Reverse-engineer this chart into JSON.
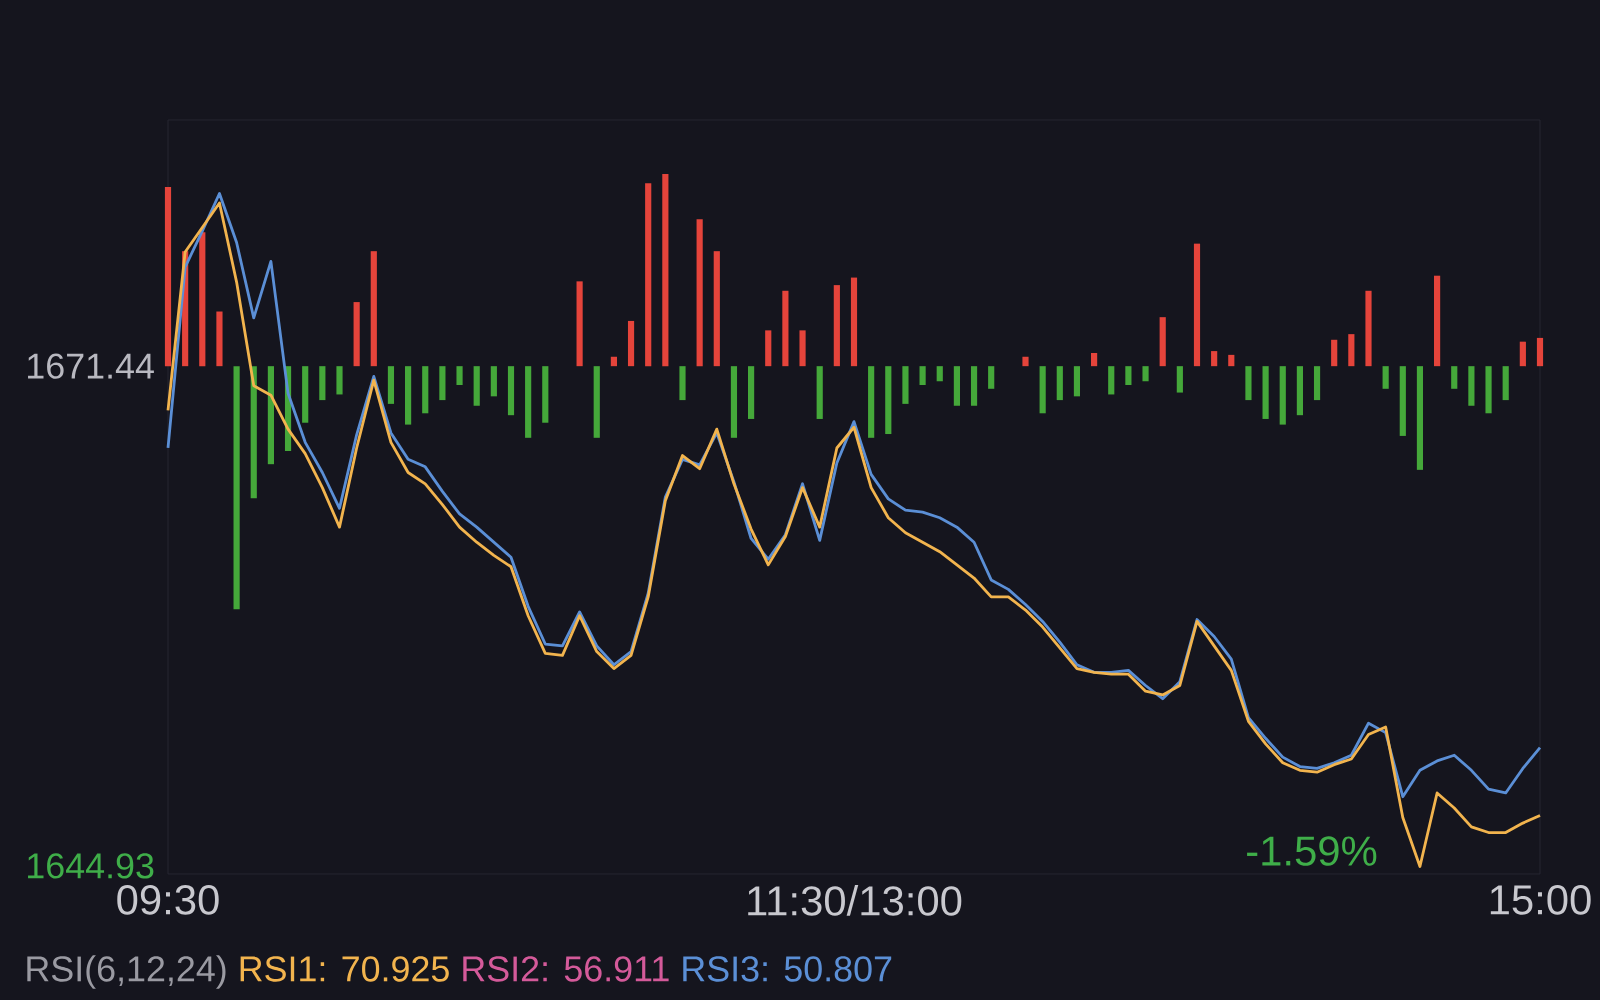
{
  "chart_data": {
    "type": "line",
    "categories": [
      "09:30",
      null,
      null,
      null,
      null,
      null,
      null,
      null,
      null,
      null,
      null,
      null,
      null,
      null,
      null,
      null,
      null,
      null,
      null,
      null,
      null,
      null,
      null,
      null,
      null,
      null,
      null,
      null,
      null,
      null,
      null,
      null,
      null,
      null,
      null,
      null,
      null,
      null,
      null,
      null,
      "11:30/13:00",
      null,
      null,
      null,
      null,
      null,
      null,
      null,
      null,
      null,
      null,
      null,
      null,
      null,
      null,
      null,
      null,
      null,
      null,
      null,
      null,
      null,
      null,
      null,
      null,
      null,
      null,
      null,
      null,
      null,
      null,
      null,
      null,
      null,
      null,
      null,
      null,
      null,
      null,
      null,
      "15:00"
    ],
    "ylim": [
      1644.5,
      1684.5
    ],
    "yticks": [
      1644.93,
      1671.44
    ],
    "marker": "none",
    "annotations": [
      "-1.59%",
      "RSI(6,12,24)",
      "RSI1: 70.925",
      "RSI2: 56.911",
      "RSI3: 50.807"
    ],
    "series": [
      {
        "type": "bar",
        "values": [
          9.5,
          6.1,
          7.1,
          2.9,
          -12.9,
          -7.0,
          -5.2,
          -4.5,
          -3.0,
          -1.8,
          -1.5,
          3.4,
          6.1,
          -2.0,
          -3.1,
          -2.5,
          -1.8,
          -1.0,
          -2.1,
          -1.6,
          -2.6,
          -3.8,
          -3.0,
          null,
          4.5,
          -3.8,
          0.5,
          2.4,
          9.7,
          10.2,
          -1.8,
          7.8,
          6.1,
          -3.8,
          -2.8,
          1.9,
          4.0,
          1.9,
          -2.8,
          4.3,
          4.7,
          -3.8,
          -3.6,
          -2.0,
          -1.0,
          -0.8,
          -2.1,
          -2.1,
          -1.2,
          null,
          0.5,
          -2.5,
          -1.8,
          -1.6,
          0.7,
          -1.5,
          -1.0,
          -0.8,
          2.6,
          -1.4,
          6.5,
          0.8,
          0.6,
          -1.8,
          -2.8,
          -3.1,
          -2.6,
          -1.8,
          1.4,
          1.7,
          4.0,
          -1.2,
          -3.7,
          -5.5,
          4.8,
          -1.2,
          -2.1,
          -2.5,
          -1.8,
          1.3,
          1.5
        ],
        "colors": [
          "#e5443b",
          "#e5443b",
          "#e5443b",
          "#e5443b",
          "#45a83a",
          "#45a83a",
          "#45a83a",
          "#45a83a",
          "#45a83a",
          "#45a83a",
          "#45a83a",
          "#e5443b",
          "#e5443b",
          "#45a83a",
          "#45a83a",
          "#45a83a",
          "#45a83a",
          "#45a83a",
          "#45a83a",
          "#45a83a",
          "#45a83a",
          "#45a83a",
          "#45a83a",
          "#45a83a",
          "#e5443b",
          "#45a83a",
          "#e5443b",
          "#e5443b",
          "#e5443b",
          "#e5443b",
          "#45a83a",
          "#e5443b",
          "#e5443b",
          "#45a83a",
          "#45a83a",
          "#e5443b",
          "#e5443b",
          "#e5443b",
          "#45a83a",
          "#e5443b",
          "#e5443b",
          "#45a83a",
          "#45a83a",
          "#45a83a",
          "#45a83a",
          "#45a83a",
          "#45a83a",
          "#45a83a",
          "#45a83a",
          "#45a83a",
          "#e5443b",
          "#45a83a",
          "#45a83a",
          "#45a83a",
          "#e5443b",
          "#45a83a",
          "#45a83a",
          "#45a83a",
          "#e5443b",
          "#45a83a",
          "#e5443b",
          "#e5443b",
          "#e5443b",
          "#45a83a",
          "#45a83a",
          "#45a83a",
          "#45a83a",
          "#45a83a",
          "#e5443b",
          "#e5443b",
          "#e5443b",
          "#45a83a",
          "#45a83a",
          "#45a83a",
          "#e5443b",
          "#45a83a",
          "#45a83a",
          "#45a83a",
          "#45a83a",
          "#e5443b",
          "#e5443b"
        ],
        "base": [
          1671.44,
          1671.44,
          1671.44,
          1671.44,
          1671.44,
          1671.44,
          1671.44,
          1671.44,
          1671.44,
          1671.44,
          1671.44,
          1671.44,
          1671.44,
          1671.44,
          1671.44,
          1671.44,
          1671.44,
          1671.44,
          1671.44,
          1671.44,
          1671.44,
          1671.44,
          1671.44,
          null,
          1671.44,
          1671.44,
          1671.44,
          1671.44,
          1671.44,
          1671.44,
          1671.44,
          1671.44,
          1671.44,
          1671.44,
          1671.44,
          1671.44,
          1671.44,
          1671.44,
          1671.44,
          1671.44,
          1671.44,
          1671.44,
          1671.44,
          1671.44,
          1671.44,
          1671.44,
          1671.44,
          1671.44,
          1671.44,
          null,
          1671.44,
          1671.44,
          1671.44,
          1671.44,
          1671.44,
          1671.44,
          1671.44,
          1671.44,
          1671.44,
          1671.44,
          1671.44,
          1671.44,
          1671.44,
          1671.44,
          1671.44,
          1671.44,
          1671.44,
          1671.44,
          1671.44,
          1671.44,
          1671.44,
          1671.44,
          1671.44,
          1671.44,
          1671.44,
          1671.44,
          1671.44,
          1671.44,
          1671.44,
          1671.44,
          1671.44
        ]
      },
      {
        "color": "#5b8fd6",
        "values": [
          1667.1,
          1676.7,
          1678.6,
          1680.6,
          1678.0,
          1674.0,
          1677.0,
          1670.0,
          1667.4,
          1665.8,
          1663.9,
          1667.8,
          1670.9,
          1667.9,
          1666.5,
          1666.1,
          1664.8,
          1663.6,
          1662.9,
          1662.1,
          1661.3,
          1658.7,
          1656.7,
          1656.6,
          1658.4,
          1656.6,
          1655.6,
          1656.3,
          1659.4,
          1664.5,
          1666.5,
          1666.2,
          1667.9,
          1665.3,
          1662.3,
          1661.2,
          1662.5,
          1665.2,
          1662.2,
          1666.3,
          1668.5,
          1665.7,
          1664.4,
          1663.8,
          1663.7,
          1663.4,
          1662.9,
          1662.1,
          1660.1,
          1659.6,
          1658.8,
          1657.9,
          1656.8,
          1655.6,
          1655.2,
          1655.2,
          1655.3,
          1654.5,
          1653.8,
          1654.7,
          1658.0,
          1657.1,
          1655.9,
          1652.8,
          1651.7,
          1650.7,
          1650.2,
          1650.1,
          1650.4,
          1650.8,
          1652.5,
          1652.0,
          1648.6,
          1650.0,
          1650.5,
          1650.8,
          1650.0,
          1649.0,
          1648.8,
          1650.1,
          1651.2
        ]
      },
      {
        "color": "#f2b44e",
        "values": [
          1669.1,
          1677.5,
          1678.8,
          1680.1,
          1675.9,
          1670.4,
          1669.9,
          1668.1,
          1666.8,
          1665.0,
          1662.9,
          1667.1,
          1670.7,
          1667.4,
          1665.8,
          1665.2,
          1664.1,
          1662.9,
          1662.1,
          1661.4,
          1660.8,
          1658.2,
          1656.2,
          1656.1,
          1658.2,
          1656.3,
          1655.4,
          1656.1,
          1659.2,
          1664.3,
          1666.7,
          1666.0,
          1668.1,
          1665.2,
          1662.8,
          1660.9,
          1662.4,
          1665.0,
          1662.9,
          1667.1,
          1668.2,
          1665.0,
          1663.4,
          1662.6,
          1662.1,
          1661.6,
          1660.9,
          1660.2,
          1659.2,
          1659.2,
          1658.5,
          1657.6,
          1656.5,
          1655.4,
          1655.2,
          1655.1,
          1655.1,
          1654.2,
          1654.0,
          1654.5,
          1657.9,
          1656.6,
          1655.3,
          1652.6,
          1651.4,
          1650.4,
          1650.0,
          1649.9,
          1650.3,
          1650.6,
          1651.9,
          1652.3,
          1647.5,
          1644.9,
          1648.8,
          1648.0,
          1647.0,
          1646.7,
          1646.7,
          1647.2,
          1647.6
        ]
      }
    ]
  }
}
